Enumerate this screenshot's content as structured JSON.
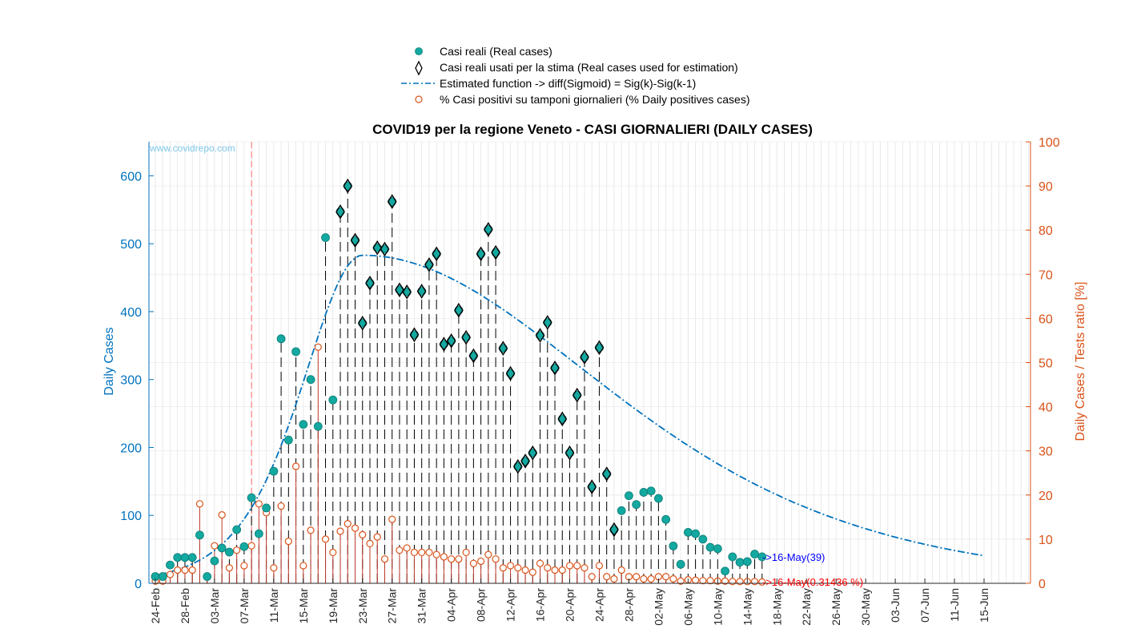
{
  "chart_data": {
    "type": "scatter",
    "title": "COVID19 per la regione Veneto - CASI GIORNALIERI (DAILY CASES)",
    "watermark": "www.covidrepo.com",
    "ylabel": "Daily Cases",
    "ylabel_right": "Daily Cases / Tests ratio [%]",
    "ylim": [
      0,
      650
    ],
    "ylim_right": [
      0,
      100
    ],
    "yticks": [
      "0",
      "100",
      "200",
      "300",
      "400",
      "500",
      "600"
    ],
    "yticks_right": [
      "0",
      "10",
      "20",
      "30",
      "40",
      "50",
      "60",
      "70",
      "80",
      "90",
      "100"
    ],
    "x_start": "2020-02-24",
    "x_end": "2020-06-15",
    "xtick_labels": [
      "24-Feb",
      "28-Feb",
      "03-Mar",
      "07-Mar",
      "11-Mar",
      "15-Mar",
      "19-Mar",
      "23-Mar",
      "27-Mar",
      "31-Mar",
      "04-Apr",
      "08-Apr",
      "12-Apr",
      "16-Apr",
      "20-Apr",
      "24-Apr",
      "28-Apr",
      "02-May",
      "06-May",
      "10-May",
      "14-May",
      "18-May",
      "22-May",
      "26-May",
      "30-May",
      "03-Jun",
      "07-Jun",
      "11-Jun",
      "15-Jun"
    ],
    "grid": true,
    "legend_position": "top-center",
    "vline_date": "2020-03-08",
    "colors": {
      "real": "#13a8a0",
      "fit": "#0072bd",
      "pct": "#d95319",
      "left_axis": "#0072bd",
      "right_axis": "#d95319",
      "annotation_blue": "#0000ff",
      "annotation_red": "#ff0000",
      "watermark": "#7ec8ea"
    },
    "series": [
      {
        "name": "Casi reali (Real cases)",
        "marker": "filled-circle",
        "start_date": "2020-02-24",
        "values": [
          10,
          10,
          27,
          38,
          38,
          38,
          71,
          10,
          33,
          52,
          46,
          79,
          54,
          126,
          73,
          111,
          165,
          360,
          211,
          341,
          234,
          300,
          231,
          509,
          270,
          547,
          585,
          505,
          383,
          442,
          494,
          492,
          562,
          432,
          429,
          366,
          430,
          469,
          485,
          352,
          357,
          402,
          362,
          335,
          485,
          521,
          487,
          346,
          309,
          172,
          180,
          192,
          365,
          384,
          317,
          242,
          192,
          277,
          333,
          142,
          347,
          161,
          79,
          107,
          129,
          116,
          134,
          136,
          125,
          94,
          55,
          28,
          75,
          73,
          65,
          53,
          51,
          18,
          39,
          31,
          32,
          43,
          39
        ]
      },
      {
        "name": "Casi reali usati per la stima (Real cases used for estimation)",
        "marker": "open-diamond",
        "start_date": "2020-03-20",
        "values": [
          547,
          585,
          505,
          383,
          442,
          494,
          492,
          562,
          432,
          429,
          366,
          430,
          469,
          485,
          352,
          357,
          402,
          362,
          335,
          485,
          521,
          487,
          346,
          309,
          172,
          180,
          192,
          365,
          384,
          317,
          242,
          192,
          277,
          333,
          142,
          347,
          161,
          79
        ]
      },
      {
        "name": "Estimated function -> diff(Sigmoid) = Sig(k)-Sig(k-1)",
        "line_style": "dash-dot",
        "peak_date": "2020-03-23",
        "peak_value": 483,
        "rise_scale_days": 5.5,
        "fall_scale_days": 22,
        "end_date": "2020-06-15"
      },
      {
        "name": "% Casi positivi su tamponi giornalieri (% Daily positives cases)",
        "marker": "open-circle",
        "axis": "right",
        "start_date": "2020-02-24",
        "values": [
          0.5,
          0.5,
          2.0,
          3.0,
          3.0,
          3.0,
          18.0,
          1.5,
          8.5,
          15.5,
          3.5,
          7.5,
          4.0,
          8.5,
          18.0,
          16.0,
          3.5,
          17.5,
          9.5,
          26.5,
          4.0,
          12.0,
          53.5,
          10.0,
          7.0,
          11.8,
          13.5,
          12.5,
          11.0,
          9.0,
          10.5,
          5.5,
          14.5,
          7.5,
          8.0,
          7.0,
          7.0,
          7.0,
          6.5,
          6.0,
          5.5,
          5.5,
          7.0,
          4.5,
          5.0,
          6.5,
          5.5,
          3.5,
          4.0,
          3.5,
          3.0,
          2.5,
          4.5,
          3.5,
          3.0,
          3.0,
          4.0,
          4.0,
          3.5,
          1.5,
          4.0,
          1.5,
          1.0,
          3.0,
          1.5,
          1.5,
          1.0,
          1.0,
          1.5,
          1.5,
          1.0,
          0.5,
          0.8,
          0.7,
          0.6,
          0.6,
          0.5,
          0.5,
          0.4,
          0.4,
          0.4,
          0.4,
          0.3
        ]
      }
    ],
    "annotations": {
      "blue": "->16-May(39)",
      "red": "->16-May(0.31436 %)"
    }
  }
}
